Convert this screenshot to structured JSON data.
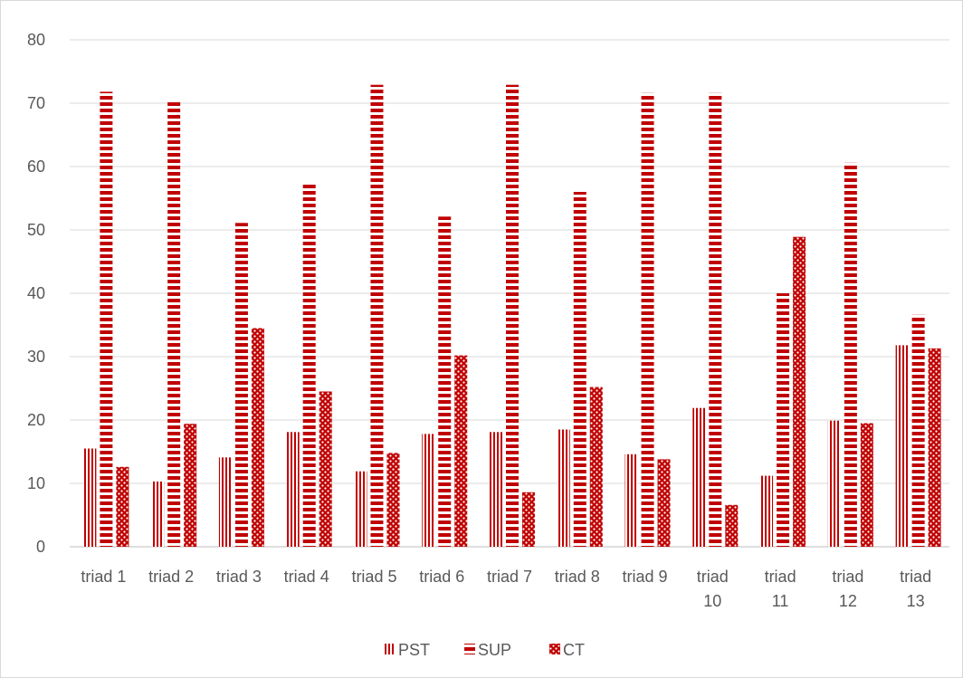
{
  "chart_data": {
    "type": "bar",
    "title": "",
    "xlabel": "",
    "ylabel": "",
    "ylim": [
      0,
      80
    ],
    "yticks": [
      0,
      10,
      20,
      30,
      40,
      50,
      60,
      70,
      80
    ],
    "grid": true,
    "legend_position": "bottom",
    "categories": [
      "triad 1",
      "triad 2",
      "triad 3",
      "triad 4",
      "triad 5",
      "triad 6",
      "triad 7",
      "triad 8",
      "triad 9",
      "triad 10",
      "triad 11",
      "triad 12",
      "triad 13"
    ],
    "series": [
      {
        "name": "PST",
        "pattern": "vertical-stripes",
        "color": "#c00000",
        "values": [
          15.5,
          10.3,
          14.1,
          18.1,
          11.9,
          17.8,
          18.1,
          18.5,
          14.6,
          21.9,
          11.2,
          19.9,
          31.8
        ]
      },
      {
        "name": "SUP",
        "pattern": "horizontal-stripes",
        "color": "#c00000",
        "values": [
          71.8,
          70.4,
          51.1,
          57.3,
          72.9,
          52.1,
          72.9,
          56.0,
          71.6,
          71.6,
          40.0,
          60.6,
          36.6
        ]
      },
      {
        "name": "CT",
        "pattern": "dots",
        "color": "#c00000",
        "values": [
          12.6,
          19.4,
          34.5,
          24.5,
          14.8,
          30.2,
          8.6,
          25.2,
          13.8,
          6.6,
          48.9,
          19.5,
          31.3
        ]
      }
    ]
  }
}
